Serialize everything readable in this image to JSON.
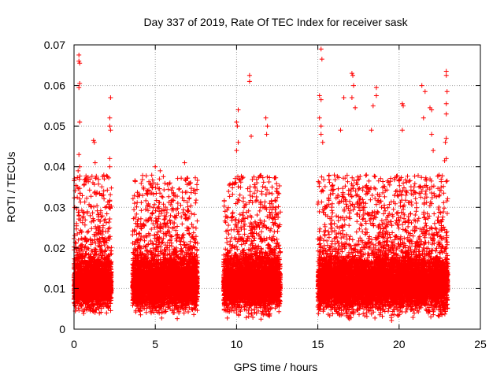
{
  "chart_data": {
    "type": "scatter",
    "title": "Day 337 of 2019, Rate Of TEC Index for receiver sask",
    "xlabel": "GPS time / hours",
    "ylabel": "ROTI / TECUs",
    "xlim": [
      0,
      25
    ],
    "ylim": [
      0,
      0.07
    ],
    "x_ticks": [
      0,
      5,
      10,
      15,
      20,
      25
    ],
    "y_ticks": [
      0,
      0.01,
      0.02,
      0.03,
      0.04,
      0.05,
      0.06,
      0.07
    ],
    "x_tick_labels": [
      "0",
      "5",
      "10",
      "15",
      "20",
      "25"
    ],
    "y_tick_labels": [
      "0",
      "0.01",
      "0.02",
      "0.03",
      "0.04",
      "0.05",
      "0.06",
      "0.07"
    ],
    "grid": true,
    "marker": "+",
    "series": [
      {
        "name": "ROTI",
        "color": "#ff0000",
        "clusters": [
          {
            "x_range": [
              0.0,
              2.3
            ],
            "median": 0.011
          },
          {
            "x_range": [
              3.6,
              7.6
            ],
            "median": 0.011
          },
          {
            "x_range": [
              9.2,
              12.7
            ],
            "median": 0.011
          },
          {
            "x_range": [
              15.0,
              23.0
            ],
            "median": 0.011
          }
        ],
        "highlighted_points": [
          {
            "x": 0.3,
            "y": 0.0675
          },
          {
            "x": 0.3,
            "y": 0.066
          },
          {
            "x": 0.35,
            "y": 0.0655
          },
          {
            "x": 0.35,
            "y": 0.0605
          },
          {
            "x": 0.3,
            "y": 0.0595
          },
          {
            "x": 0.35,
            "y": 0.051
          },
          {
            "x": 0.3,
            "y": 0.043
          },
          {
            "x": 0.35,
            "y": 0.04
          },
          {
            "x": 0.25,
            "y": 0.039
          },
          {
            "x": 0.2,
            "y": 0.035
          },
          {
            "x": 1.2,
            "y": 0.0465
          },
          {
            "x": 1.25,
            "y": 0.046
          },
          {
            "x": 1.3,
            "y": 0.041
          },
          {
            "x": 2.25,
            "y": 0.057
          },
          {
            "x": 2.2,
            "y": 0.052
          },
          {
            "x": 2.2,
            "y": 0.05
          },
          {
            "x": 2.25,
            "y": 0.049
          },
          {
            "x": 2.2,
            "y": 0.042
          },
          {
            "x": 2.2,
            "y": 0.04
          },
          {
            "x": 5.0,
            "y": 0.04
          },
          {
            "x": 5.3,
            "y": 0.039
          },
          {
            "x": 6.8,
            "y": 0.041
          },
          {
            "x": 10.1,
            "y": 0.054
          },
          {
            "x": 10.0,
            "y": 0.051
          },
          {
            "x": 10.05,
            "y": 0.05
          },
          {
            "x": 10.1,
            "y": 0.046
          },
          {
            "x": 10.0,
            "y": 0.044
          },
          {
            "x": 10.8,
            "y": 0.0625
          },
          {
            "x": 10.8,
            "y": 0.061
          },
          {
            "x": 11.8,
            "y": 0.052
          },
          {
            "x": 11.9,
            "y": 0.05
          },
          {
            "x": 11.85,
            "y": 0.048
          },
          {
            "x": 10.9,
            "y": 0.0475
          },
          {
            "x": 15.2,
            "y": 0.069
          },
          {
            "x": 15.25,
            "y": 0.0665
          },
          {
            "x": 15.1,
            "y": 0.0575
          },
          {
            "x": 15.2,
            "y": 0.0565
          },
          {
            "x": 15.1,
            "y": 0.052
          },
          {
            "x": 15.2,
            "y": 0.05
          },
          {
            "x": 15.2,
            "y": 0.048
          },
          {
            "x": 15.3,
            "y": 0.046
          },
          {
            "x": 17.1,
            "y": 0.063
          },
          {
            "x": 17.15,
            "y": 0.0625
          },
          {
            "x": 17.2,
            "y": 0.06
          },
          {
            "x": 17.1,
            "y": 0.057
          },
          {
            "x": 17.3,
            "y": 0.0545
          },
          {
            "x": 16.6,
            "y": 0.057
          },
          {
            "x": 16.4,
            "y": 0.049
          },
          {
            "x": 18.6,
            "y": 0.0595
          },
          {
            "x": 18.6,
            "y": 0.0575
          },
          {
            "x": 18.4,
            "y": 0.055
          },
          {
            "x": 18.3,
            "y": 0.049
          },
          {
            "x": 20.2,
            "y": 0.0555
          },
          {
            "x": 20.25,
            "y": 0.055
          },
          {
            "x": 20.2,
            "y": 0.049
          },
          {
            "x": 21.4,
            "y": 0.06
          },
          {
            "x": 21.6,
            "y": 0.0585
          },
          {
            "x": 21.9,
            "y": 0.0545
          },
          {
            "x": 22.0,
            "y": 0.054
          },
          {
            "x": 21.5,
            "y": 0.052
          },
          {
            "x": 22.0,
            "y": 0.048
          },
          {
            "x": 22.1,
            "y": 0.044
          },
          {
            "x": 22.9,
            "y": 0.0635
          },
          {
            "x": 22.9,
            "y": 0.0625
          },
          {
            "x": 22.95,
            "y": 0.0585
          },
          {
            "x": 22.9,
            "y": 0.0555
          },
          {
            "x": 22.9,
            "y": 0.053
          },
          {
            "x": 22.9,
            "y": 0.047
          },
          {
            "x": 22.85,
            "y": 0.046
          },
          {
            "x": 22.9,
            "y": 0.042
          },
          {
            "x": 22.8,
            "y": 0.0415
          }
        ]
      }
    ]
  }
}
